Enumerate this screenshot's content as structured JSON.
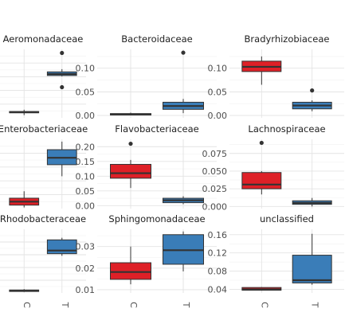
{
  "chart_data": {
    "type": "box",
    "layout": "3x3 facet grid, free y scales",
    "categories": [
      "C",
      "T"
    ],
    "colors": {
      "C": "#de2027",
      "T": "#3a7db8"
    },
    "grid": true,
    "legend": "none",
    "facets": [
      {
        "title": "Aeromonadaceae",
        "ylim": [
          0,
          0.38
        ],
        "yticks": [],
        "boxes": [
          {
            "group": "C",
            "lower": 0.015,
            "q1": 0.028,
            "median": 0.031,
            "q3": 0.035,
            "upper": 0.045,
            "outliers": []
          },
          {
            "group": "T",
            "lower": 0.23,
            "q1": 0.235,
            "median": 0.243,
            "q3": 0.255,
            "upper": 0.27,
            "outliers": [
              0.36,
              0.17
            ]
          }
        ]
      },
      {
        "title": "Bacteroidaceae",
        "ylim": [
          -0.005,
          0.14
        ],
        "yticks": [
          "0.00",
          "0.05",
          "0.10"
        ],
        "boxes": [
          {
            "group": "C",
            "lower": 0.0,
            "q1": 0.001,
            "median": 0.002,
            "q3": 0.004,
            "upper": 0.006,
            "outliers": []
          },
          {
            "group": "T",
            "lower": 0.005,
            "q1": 0.013,
            "median": 0.02,
            "q3": 0.028,
            "upper": 0.035,
            "outliers": [
              0.133
            ]
          }
        ]
      },
      {
        "title": "Bradyrhizobiaceae",
        "ylim": [
          -0.005,
          0.14
        ],
        "yticks": [
          "0.00",
          "0.05",
          "0.10"
        ],
        "boxes": [
          {
            "group": "C",
            "lower": 0.065,
            "q1": 0.093,
            "median": 0.103,
            "q3": 0.115,
            "upper": 0.125,
            "outliers": []
          },
          {
            "group": "T",
            "lower": 0.009,
            "q1": 0.014,
            "median": 0.021,
            "q3": 0.028,
            "upper": 0.032,
            "outliers": [
              0.053
            ]
          }
        ]
      },
      {
        "title": "Enterobacteriaceae",
        "ylim": [
          0,
          0.3
        ],
        "yticks": [],
        "boxes": [
          {
            "group": "C",
            "lower": 0.005,
            "q1": 0.015,
            "median": 0.03,
            "q3": 0.045,
            "upper": 0.075,
            "outliers": []
          },
          {
            "group": "T",
            "lower": 0.14,
            "q1": 0.19,
            "median": 0.22,
            "q3": 0.255,
            "upper": 0.29,
            "outliers": []
          }
        ]
      },
      {
        "title": "Flavobacteriaceae",
        "ylim": [
          -0.01,
          0.225
        ],
        "yticks": [
          "0.00",
          "0.05",
          "0.10",
          "0.15",
          "0.20"
        ],
        "boxes": [
          {
            "group": "C",
            "lower": 0.06,
            "q1": 0.093,
            "median": 0.11,
            "q3": 0.14,
            "upper": 0.155,
            "outliers": [
              0.21
            ]
          },
          {
            "group": "T",
            "lower": 0.005,
            "q1": 0.01,
            "median": 0.018,
            "q3": 0.025,
            "upper": 0.032,
            "outliers": []
          }
        ]
      },
      {
        "title": "Lachnospiraceae",
        "ylim": [
          -0.003,
          0.095
        ],
        "yticks": [
          "0.000",
          "0.025",
          "0.050",
          "0.075"
        ],
        "boxes": [
          {
            "group": "C",
            "lower": 0.017,
            "q1": 0.025,
            "median": 0.031,
            "q3": 0.048,
            "upper": 0.05,
            "outliers": [
              0.09
            ]
          },
          {
            "group": "T",
            "lower": 0.0,
            "q1": 0.003,
            "median": 0.005,
            "q3": 0.008,
            "upper": 0.012,
            "outliers": []
          }
        ]
      },
      {
        "title": "Rhodobacteraceae",
        "ylim": [
          0,
          0.3
        ],
        "yticks": [],
        "boxes": [
          {
            "group": "C",
            "lower": 0.005,
            "q1": 0.007,
            "median": 0.01,
            "q3": 0.014,
            "upper": 0.018,
            "outliers": []
          },
          {
            "group": "T",
            "lower": 0.175,
            "q1": 0.185,
            "median": 0.2,
            "q3": 0.25,
            "upper": 0.26,
            "outliers": []
          }
        ]
      },
      {
        "title": "Sphingomonadaceae",
        "ylim": [
          0.0085,
          0.038
        ],
        "yticks": [
          "0.01",
          "0.02",
          "0.03"
        ],
        "boxes": [
          {
            "group": "C",
            "lower": 0.0125,
            "q1": 0.0148,
            "median": 0.0182,
            "q3": 0.0225,
            "upper": 0.03,
            "outliers": []
          },
          {
            "group": "T",
            "lower": 0.0185,
            "q1": 0.0218,
            "median": 0.0283,
            "q3": 0.0355,
            "upper": 0.037,
            "outliers": []
          }
        ]
      },
      {
        "title": "unclassified",
        "ylim": [
          0.032,
          0.172
        ],
        "yticks": [
          "0.04",
          "0.08",
          "0.12",
          "0.16"
        ],
        "boxes": [
          {
            "group": "C",
            "lower": 0.037,
            "q1": 0.038,
            "median": 0.04,
            "q3": 0.044,
            "upper": 0.045,
            "outliers": []
          },
          {
            "group": "T",
            "lower": 0.05,
            "q1": 0.054,
            "median": 0.06,
            "q3": 0.115,
            "upper": 0.162,
            "outliers": []
          }
        ]
      }
    ]
  }
}
